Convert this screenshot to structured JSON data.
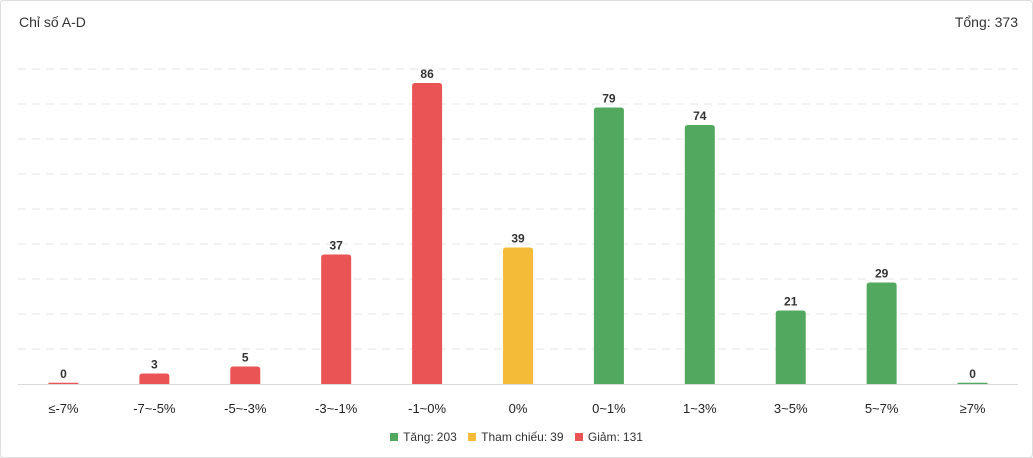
{
  "header": {
    "title": "Chỉ số A-D",
    "total_label": "Tổng:",
    "total_value": "373"
  },
  "colors": {
    "up": "#52a85e",
    "reference": "#f3bb37",
    "down": "#ea5455",
    "grid": "#e6e6e6",
    "baseline": "#d9d9d9"
  },
  "legend": [
    {
      "label": "Tăng:",
      "value": "203",
      "color_key": "up"
    },
    {
      "label": "Tham chiếu:",
      "value": "39",
      "color_key": "reference"
    },
    {
      "label": "Giảm:",
      "value": "131",
      "color_key": "down"
    }
  ],
  "chart_data": {
    "type": "bar",
    "categories": [
      "≤-7%",
      "-7~-5%",
      "-5~-3%",
      "-3~-1%",
      "-1~0%",
      "0%",
      "0~1%",
      "1~3%",
      "3~5%",
      "5~7%",
      "≥7%"
    ],
    "values": [
      0,
      3,
      5,
      37,
      86,
      39,
      79,
      74,
      21,
      29,
      0
    ],
    "bar_color_keys": [
      "down",
      "down",
      "down",
      "down",
      "down",
      "reference",
      "up",
      "up",
      "up",
      "up",
      "up"
    ],
    "ylim": [
      0,
      90
    ],
    "grid": true,
    "data_labels": true,
    "legend_position": "bottom"
  }
}
